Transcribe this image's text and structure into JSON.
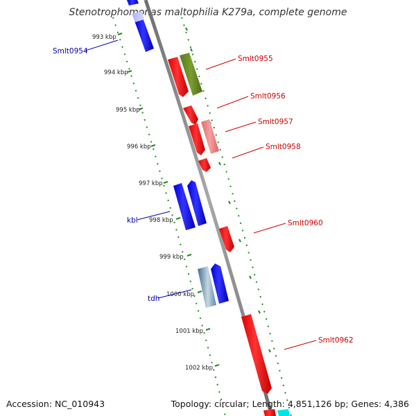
{
  "title": "Stenotrophomonas maltophilia K279a, complete genome",
  "accession": "Accession: NC_010943",
  "summary": "Topology: circular; Length: 4,851,126 bp; Genes: 4,386",
  "kbp_labels": [
    "993 kbp",
    "994 kbp",
    "995 kbp",
    "996 kbp",
    "997 kbp",
    "998 kbp",
    "999 kbp",
    "1000 kbp",
    "1001 kbp",
    "1002 kbp"
  ],
  "gene_labels": {
    "smlt0954": "Smlt0954",
    "kbl": "kbl",
    "tdh": "tdh",
    "smlt0955": "Smlt0955",
    "smlt0956": "Smlt0956",
    "smlt0957": "Smlt0957",
    "smlt0958": "Smlt0958",
    "smlt0960": "Smlt0960",
    "smlt0962": "Smlt0962"
  },
  "colors": {
    "backbone": "#808080",
    "tick": "#1f8a1f",
    "reverse_gene": "#0000ff",
    "forward_gene": "#ff0000",
    "forward_label": "#cc0000",
    "reverse_label": "#0000aa",
    "olive_gene": "#6b8e23",
    "pink_gene": "#f08080",
    "steel_gene": "#4682b4",
    "cyan_gene": "#00e5e5"
  }
}
